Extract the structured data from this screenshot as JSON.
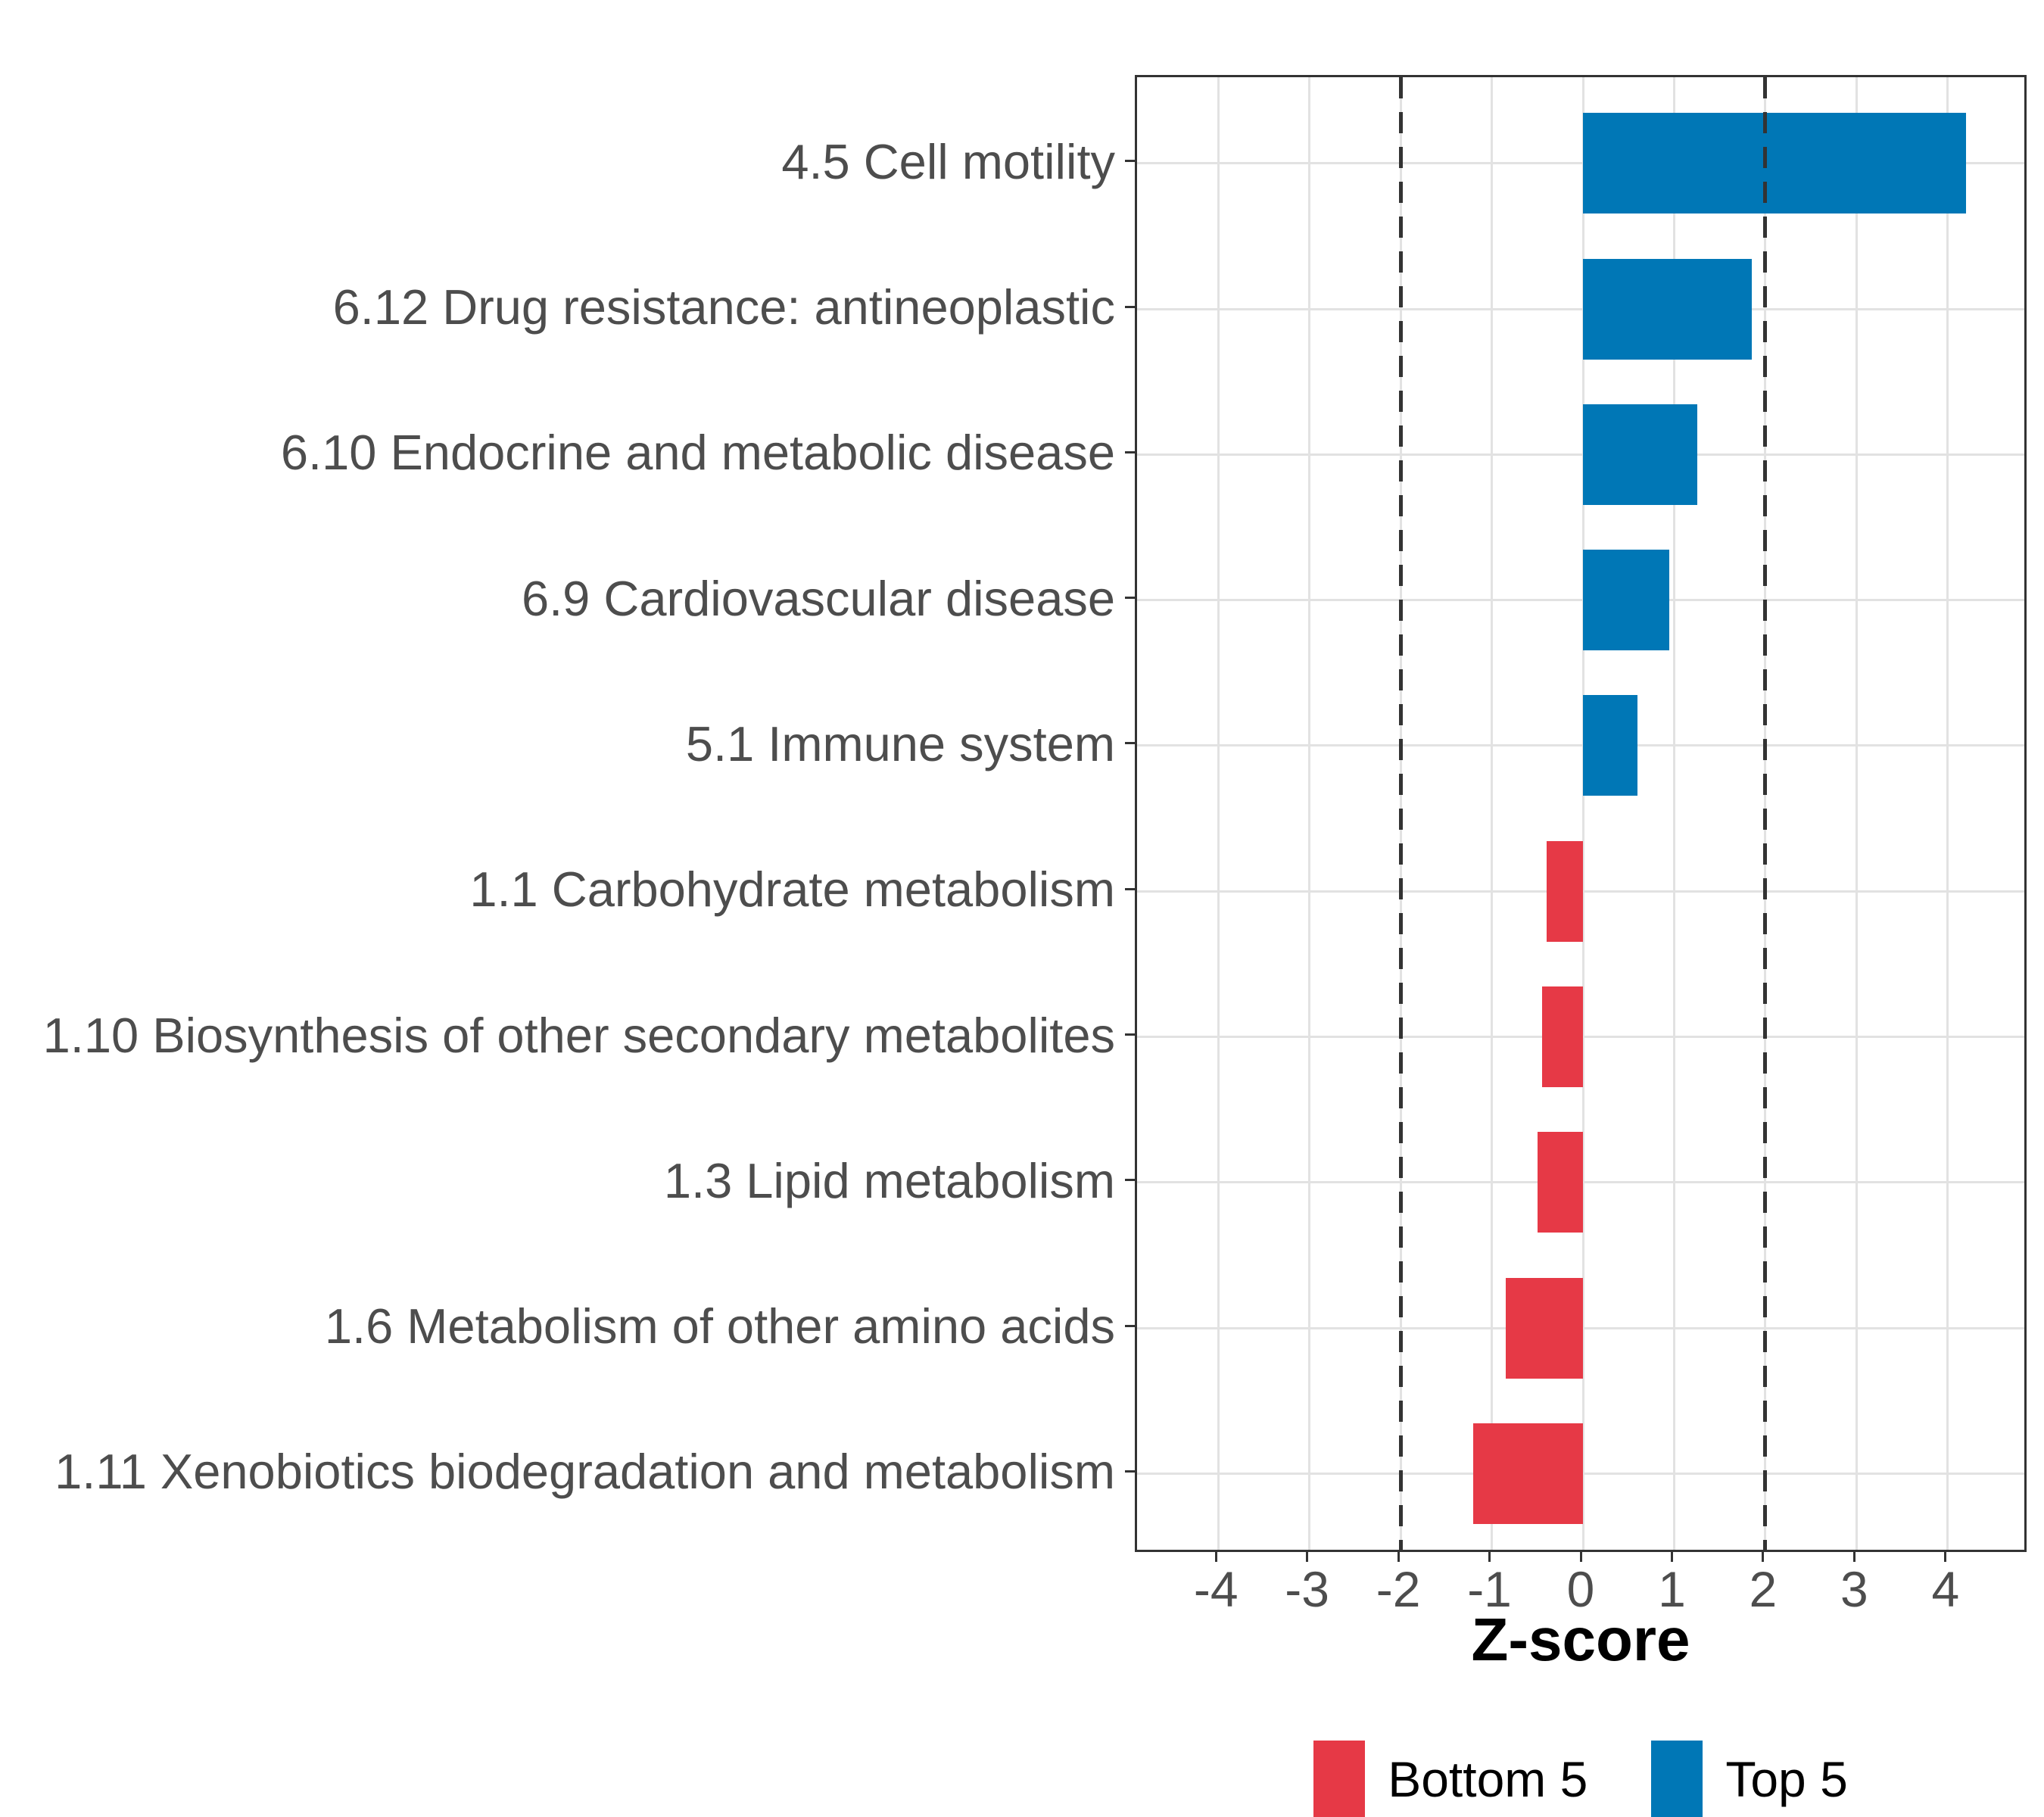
{
  "chart_data": {
    "type": "bar",
    "orientation": "horizontal",
    "title": "",
    "xlabel": "Z-score",
    "ylabel": "",
    "xlim": [
      -4.89,
      4.89
    ],
    "x_ticks": [
      -4,
      -3,
      -2,
      -1,
      0,
      1,
      2,
      3,
      4
    ],
    "reference_lines": [
      -2,
      2
    ],
    "grid": "major-only",
    "legend_position": "bottom",
    "bars": [
      {
        "label": "4.5 Cell motility",
        "value": 4.2,
        "group": "Top 5"
      },
      {
        "label": "6.12 Drug resistance: antineoplastic",
        "value": 1.85,
        "group": "Top 5"
      },
      {
        "label": "6.10 Endocrine and metabolic disease",
        "value": 1.25,
        "group": "Top 5"
      },
      {
        "label": "6.9 Cardiovascular disease",
        "value": 0.95,
        "group": "Top 5"
      },
      {
        "label": "5.1 Immune system",
        "value": 0.6,
        "group": "Top 5"
      },
      {
        "label": "1.1 Carbohydrate metabolism",
        "value": -0.4,
        "group": "Bottom 5"
      },
      {
        "label": "1.10 Biosynthesis of other secondary metabolites",
        "value": -0.45,
        "group": "Bottom 5"
      },
      {
        "label": "1.3 Lipid metabolism",
        "value": -0.5,
        "group": "Bottom 5"
      },
      {
        "label": "1.6 Metabolism of other amino acids",
        "value": -0.85,
        "group": "Bottom 5"
      },
      {
        "label": "1.11 Xenobiotics biodegradation and metabolism",
        "value": -1.2,
        "group": "Bottom 5"
      }
    ],
    "legend": [
      {
        "label": "Bottom 5",
        "color": "#E63946"
      },
      {
        "label": "Top 5",
        "color": "#0077B6"
      }
    ],
    "colors": {
      "top5": "#0077B6",
      "bottom5": "#E63946",
      "gridline": "#E2E2E2",
      "panel_border": "#333333",
      "reference_line": "#333333",
      "axis_text": "#4D4D4D",
      "axis_title": "#000000"
    }
  }
}
